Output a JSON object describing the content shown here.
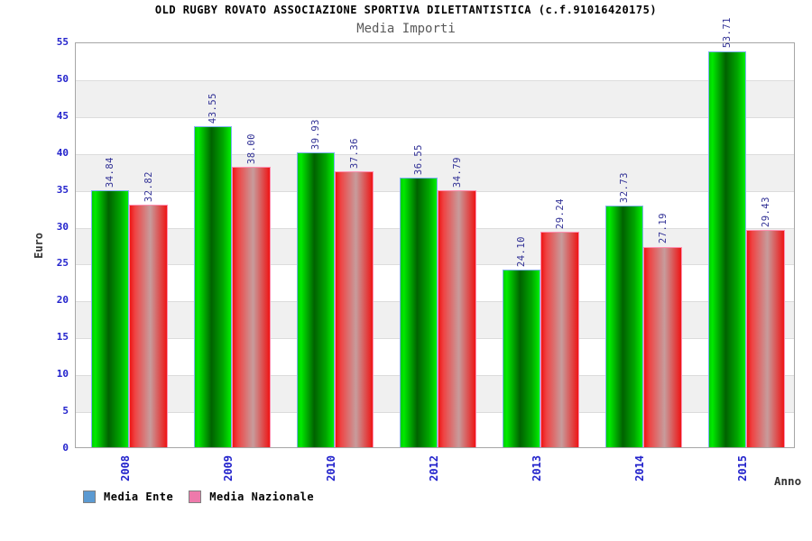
{
  "chart_data": {
    "type": "bar",
    "title": "OLD RUGBY ROVATO ASSOCIAZIONE SPORTIVA DILETTANTISTICA (c.f.91016420175)",
    "subtitle": "Media Importi",
    "categories": [
      "2008",
      "2009",
      "2010",
      "2012",
      "2013",
      "2014",
      "2015"
    ],
    "series": [
      {
        "name": "Media Ente",
        "legend_color": "#5b9ad2",
        "bar_color": "#00cc00",
        "values": [
          34.84,
          43.55,
          39.93,
          36.55,
          24.1,
          32.73,
          53.71
        ]
      },
      {
        "name": "Media Nazionale",
        "legend_color": "#ee7aab",
        "bar_color": "#ee2222",
        "values": [
          32.82,
          38.0,
          37.36,
          34.79,
          29.24,
          27.19,
          29.43
        ]
      }
    ],
    "xlabel": "Anno",
    "ylabel": "Euro",
    "ylim": [
      0,
      55
    ],
    "ytick_step": 5,
    "value_label_decimals": 2,
    "grid": "horizontal-bands-alternating",
    "legend_position": "bottom-left",
    "colors": {
      "band_gray": "#f0f0f0",
      "gridline": "#dcdcdc",
      "plot_border": "#a6a6a6",
      "axis_tick_text": "#2323cc",
      "value_label_text": "#323296",
      "title_text": "#000000",
      "subtitle_text": "#5a5a5a",
      "axis_title_text": "#333333",
      "background": "#ffffff"
    }
  }
}
